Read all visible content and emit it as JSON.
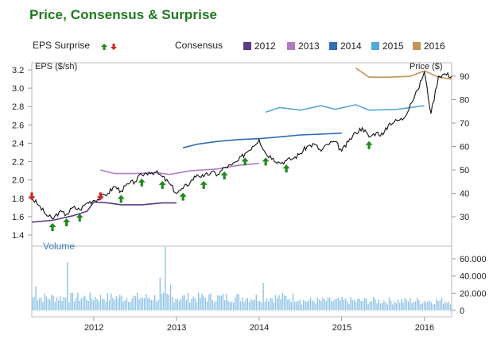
{
  "page": {
    "title": "Price, Consensus & Surprise"
  },
  "colors": {
    "title": "#1f7a1f",
    "price": "#111111",
    "surprise_up": "#1e8a1e",
    "surprise_down": "#cc2222",
    "c2012": "#5a3b8a",
    "c2013": "#b07cc6",
    "c2014": "#2f6db5",
    "c2015": "#56a8d6",
    "c2016": "#c0955a",
    "volume": "#8fc3e6"
  },
  "legend": {
    "eps_surprise": "EPS Surprise",
    "consensus": "Consensus",
    "series": [
      {
        "key": "2012",
        "label": "2012",
        "color": "#5a3b8a"
      },
      {
        "key": "2013",
        "label": "2013",
        "color": "#b07cc6"
      },
      {
        "key": "2014",
        "label": "2014",
        "color": "#2f6db5"
      },
      {
        "key": "2015",
        "label": "2015",
        "color": "#56a8d6"
      },
      {
        "key": "2016",
        "label": "2016",
        "color": "#c0955a"
      }
    ]
  },
  "chart_data": {
    "type": "line",
    "left_axis": {
      "label": "EPS ($/sh)",
      "min": 1.4,
      "max": 3.2,
      "ticks": [
        "1.4",
        "1.6",
        "1.8",
        "2.0",
        "2.2",
        "2.4",
        "2.6",
        "2.8",
        "3.0",
        "3.2"
      ]
    },
    "right_axis": {
      "label": "Price ($)",
      "ticks": [
        "30",
        "40",
        "50",
        "60",
        "70",
        "80",
        "90"
      ]
    },
    "x_axis": {
      "start": 2011.25,
      "end": 2016.33,
      "ticks": [
        {
          "v": 2012,
          "label": "2012"
        },
        {
          "v": 2013,
          "label": "2013"
        },
        {
          "v": 2014,
          "label": "2014"
        },
        {
          "v": 2015,
          "label": "2015"
        },
        {
          "v": 2016,
          "label": "2016"
        }
      ]
    },
    "price": [
      [
        2011.25,
        38
      ],
      [
        2011.33,
        35
      ],
      [
        2011.42,
        31
      ],
      [
        2011.5,
        29
      ],
      [
        2011.58,
        32
      ],
      [
        2011.67,
        31
      ],
      [
        2011.75,
        34
      ],
      [
        2011.83,
        33
      ],
      [
        2011.92,
        36
      ],
      [
        2012.0,
        37
      ],
      [
        2012.08,
        38
      ],
      [
        2012.17,
        40
      ],
      [
        2012.25,
        43
      ],
      [
        2012.33,
        41
      ],
      [
        2012.42,
        44
      ],
      [
        2012.5,
        45
      ],
      [
        2012.58,
        48
      ],
      [
        2012.67,
        49
      ],
      [
        2012.75,
        49
      ],
      [
        2012.83,
        47
      ],
      [
        2012.92,
        44
      ],
      [
        2013.0,
        40
      ],
      [
        2013.08,
        42
      ],
      [
        2013.17,
        45
      ],
      [
        2013.25,
        48
      ],
      [
        2013.33,
        47
      ],
      [
        2013.42,
        49
      ],
      [
        2013.5,
        48
      ],
      [
        2013.58,
        51
      ],
      [
        2013.67,
        52
      ],
      [
        2013.75,
        54
      ],
      [
        2013.83,
        57
      ],
      [
        2013.92,
        60
      ],
      [
        2014.0,
        63
      ],
      [
        2014.08,
        57
      ],
      [
        2014.17,
        55
      ],
      [
        2014.25,
        53
      ],
      [
        2014.33,
        54
      ],
      [
        2014.42,
        55
      ],
      [
        2014.5,
        57
      ],
      [
        2014.58,
        60
      ],
      [
        2014.67,
        61
      ],
      [
        2014.75,
        58
      ],
      [
        2014.83,
        61
      ],
      [
        2014.92,
        62
      ],
      [
        2015.0,
        58
      ],
      [
        2015.08,
        62
      ],
      [
        2015.17,
        66
      ],
      [
        2015.25,
        68
      ],
      [
        2015.33,
        64
      ],
      [
        2015.42,
        66
      ],
      [
        2015.5,
        65
      ],
      [
        2015.58,
        70
      ],
      [
        2015.67,
        71
      ],
      [
        2015.75,
        72
      ],
      [
        2015.83,
        78
      ],
      [
        2015.92,
        84
      ],
      [
        2016.0,
        92
      ],
      [
        2016.08,
        74
      ],
      [
        2016.17,
        90
      ],
      [
        2016.25,
        91
      ],
      [
        2016.33,
        90
      ]
    ],
    "consensus": [
      {
        "key": "2012",
        "points": [
          [
            2011.25,
            1.54
          ],
          [
            2011.5,
            1.56
          ],
          [
            2011.75,
            1.61
          ],
          [
            2011.92,
            1.66
          ],
          [
            2012.0,
            1.76
          ],
          [
            2012.17,
            1.75
          ],
          [
            2012.33,
            1.73
          ],
          [
            2012.58,
            1.73
          ],
          [
            2012.83,
            1.75
          ],
          [
            2013.0,
            1.75
          ]
        ]
      },
      {
        "key": "2013",
        "points": [
          [
            2012.08,
            2.11
          ],
          [
            2012.25,
            2.07
          ],
          [
            2012.5,
            2.07
          ],
          [
            2012.75,
            2.08
          ],
          [
            2012.92,
            2.06
          ],
          [
            2013.17,
            2.1
          ],
          [
            2013.5,
            2.12
          ],
          [
            2013.75,
            2.16
          ],
          [
            2014.0,
            2.18
          ]
        ]
      },
      {
        "key": "2014",
        "points": [
          [
            2013.08,
            2.35
          ],
          [
            2013.25,
            2.39
          ],
          [
            2013.5,
            2.42
          ],
          [
            2013.75,
            2.44
          ],
          [
            2014.0,
            2.45
          ],
          [
            2014.25,
            2.47
          ],
          [
            2014.5,
            2.49
          ],
          [
            2014.75,
            2.5
          ],
          [
            2015.0,
            2.51
          ]
        ]
      },
      {
        "key": "2015",
        "points": [
          [
            2014.08,
            2.74
          ],
          [
            2014.25,
            2.79
          ],
          [
            2014.5,
            2.76
          ],
          [
            2014.75,
            2.81
          ],
          [
            2014.92,
            2.77
          ],
          [
            2015.17,
            2.82
          ],
          [
            2015.33,
            2.76
          ],
          [
            2015.67,
            2.77
          ],
          [
            2016.0,
            2.81
          ]
        ]
      },
      {
        "key": "2016",
        "points": [
          [
            2015.17,
            3.22
          ],
          [
            2015.33,
            3.12
          ],
          [
            2015.58,
            3.12
          ],
          [
            2015.83,
            3.13
          ],
          [
            2016.0,
            3.19
          ],
          [
            2016.17,
            3.12
          ],
          [
            2016.33,
            3.1
          ]
        ]
      }
    ],
    "surprises": [
      {
        "x": 2011.25,
        "type": "down"
      },
      {
        "x": 2011.5,
        "type": "up"
      },
      {
        "x": 2011.67,
        "type": "up"
      },
      {
        "x": 2011.83,
        "type": "up"
      },
      {
        "x": 2012.08,
        "type": "down"
      },
      {
        "x": 2012.33,
        "type": "up"
      },
      {
        "x": 2012.58,
        "type": "up"
      },
      {
        "x": 2012.83,
        "type": "up"
      },
      {
        "x": 2013.08,
        "type": "up"
      },
      {
        "x": 2013.33,
        "type": "up"
      },
      {
        "x": 2013.58,
        "type": "up"
      },
      {
        "x": 2013.83,
        "type": "up"
      },
      {
        "x": 2014.08,
        "type": "up"
      },
      {
        "x": 2014.33,
        "type": "up"
      },
      {
        "x": 2015.33,
        "type": "up"
      }
    ],
    "volume": {
      "label": "Volume",
      "max": 65000,
      "ticks": [
        "0",
        "20.000",
        "40.000",
        "60.000"
      ]
    }
  }
}
